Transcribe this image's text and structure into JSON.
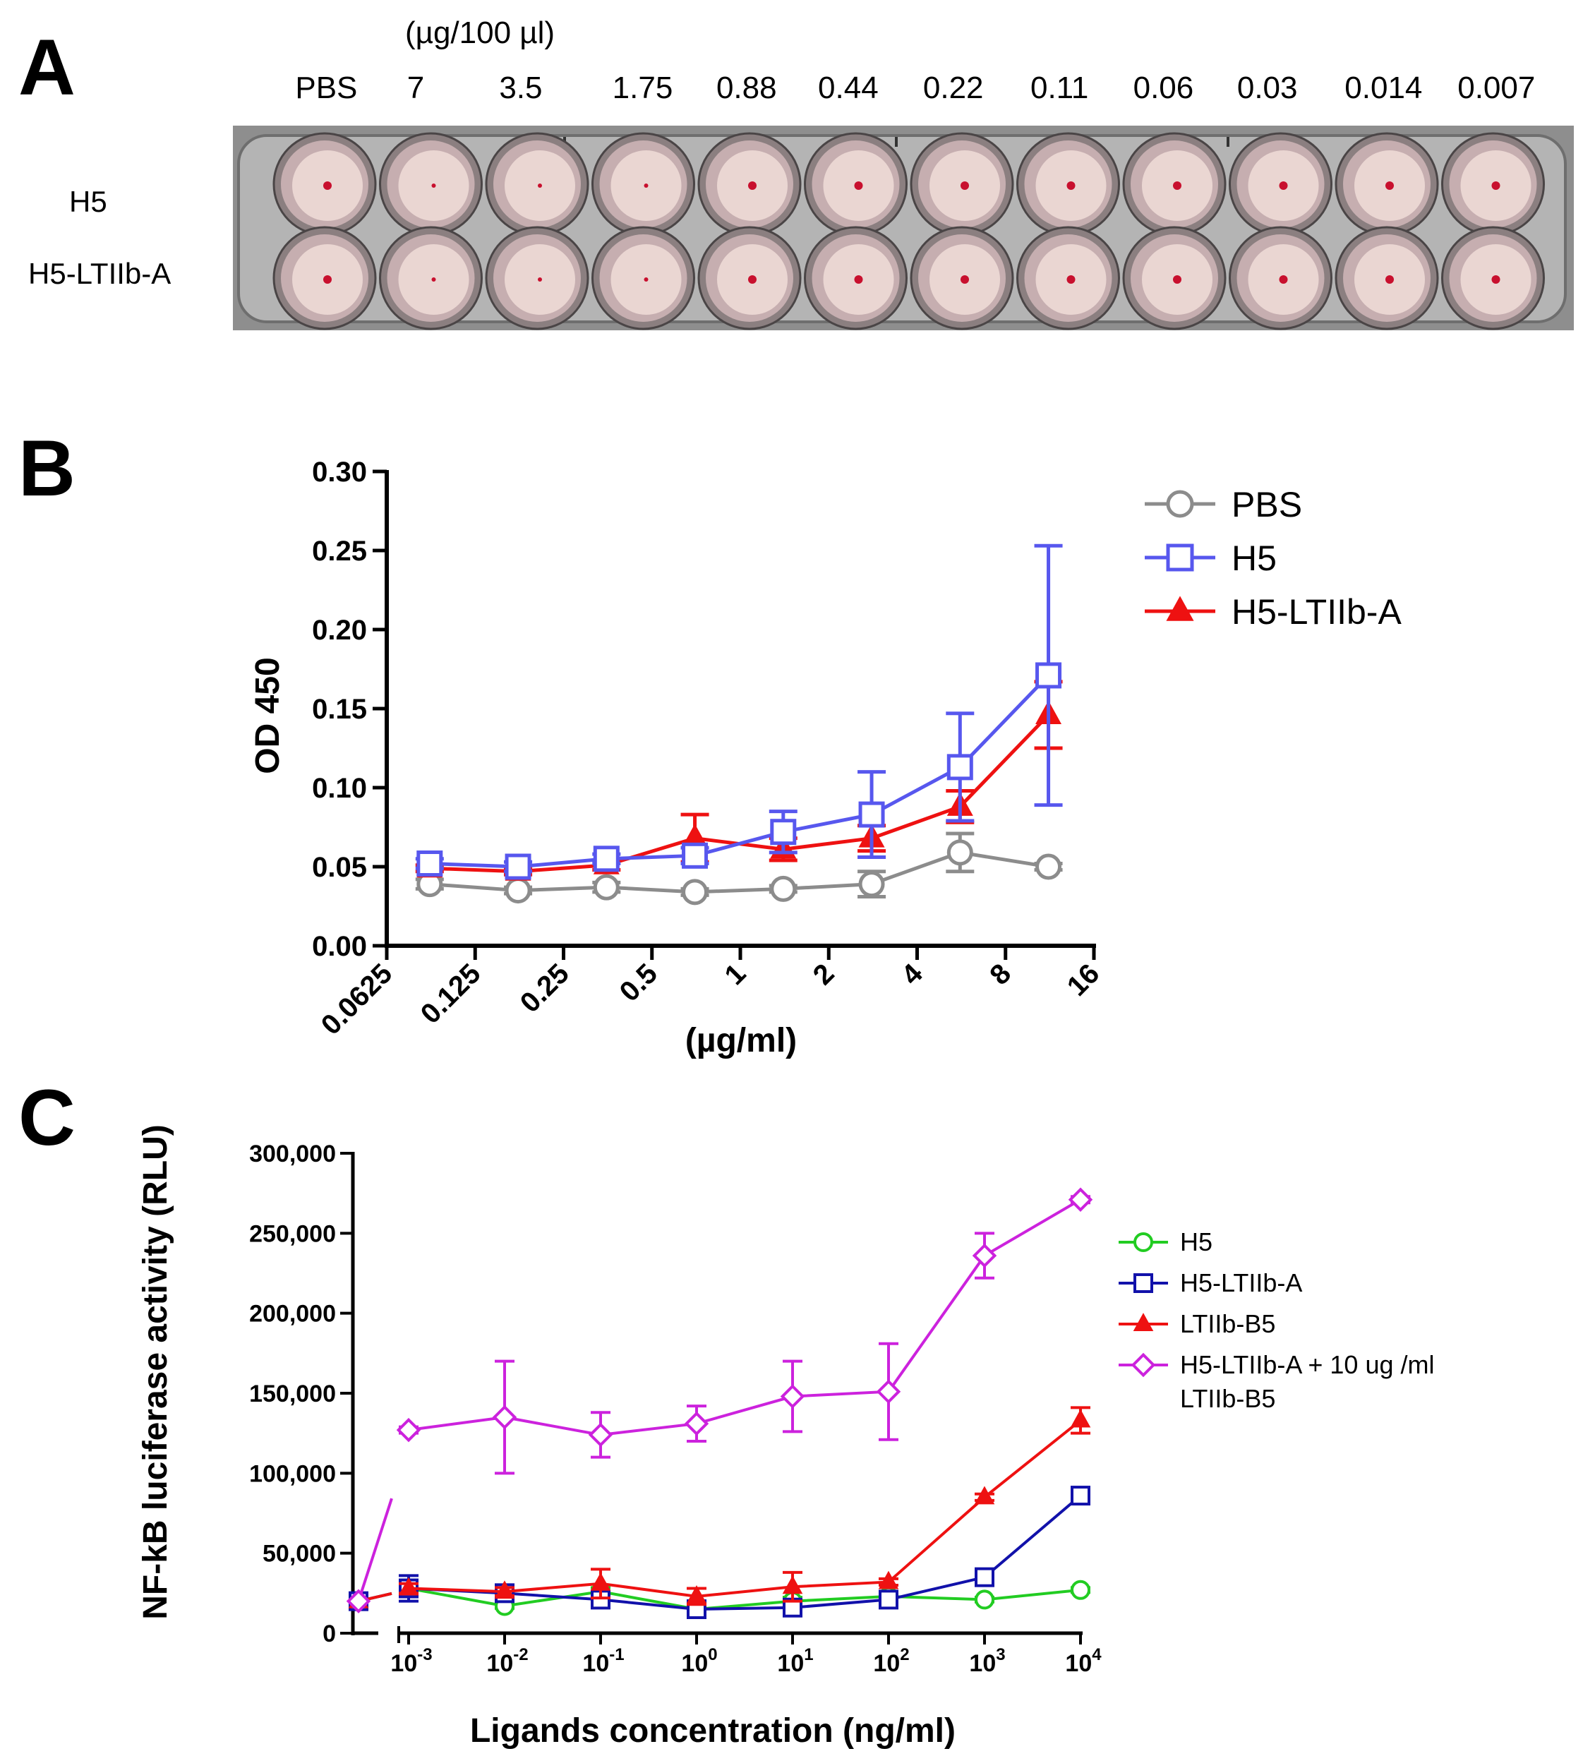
{
  "panel_a": {
    "letter": "A",
    "units": "(µg/100 µl)",
    "columns": [
      "PBS",
      "7",
      "3.5",
      "1.75",
      "0.88",
      "0.44",
      "0.22",
      "0.11",
      "0.06",
      "0.03",
      "0.014",
      "0.007"
    ],
    "rows": [
      "H5",
      "H5-LTIIb-A"
    ],
    "colors": {
      "plate": "#8e8e8e",
      "well": "#ead6d2",
      "rbc_dot": "#c8102e"
    }
  },
  "panel_b": {
    "letter": "B",
    "chart_data": {
      "type": "line",
      "xlabel": "(µg/ml)",
      "ylabel": "OD 450",
      "x_scale": "log2",
      "xlim": [
        0.0625,
        16
      ],
      "x_ticks": [
        "0.0625",
        "0.125",
        "0.25",
        "0.5",
        "1",
        "2",
        "4",
        "8",
        "16"
      ],
      "ylim": [
        0,
        0.3
      ],
      "y_ticks": [
        "0.00",
        "0.05",
        "0.10",
        "0.15",
        "0.20",
        "0.25",
        "0.30"
      ],
      "x": [
        0.0875,
        0.175,
        0.35,
        0.7,
        1.4,
        2.8,
        5.6,
        11.2
      ],
      "series": [
        {
          "name": "PBS",
          "color": "#8c8c8c",
          "marker": "circle",
          "values": [
            0.039,
            0.035,
            0.037,
            0.034,
            0.036,
            0.039,
            0.059,
            0.05
          ],
          "errors": [
            0.003,
            0.002,
            0.003,
            0.002,
            0.002,
            0.008,
            0.012,
            0.002
          ]
        },
        {
          "name": "H5",
          "color": "#5757ee",
          "marker": "square",
          "values": [
            0.052,
            0.05,
            0.055,
            0.057,
            0.072,
            0.083,
            0.113,
            0.171
          ],
          "errors": [
            0.003,
            0.003,
            0.003,
            0.005,
            0.013,
            0.027,
            0.034,
            0.082
          ]
        },
        {
          "name": "H5-LTIIb-A",
          "color": "#ee1111",
          "marker": "triangle",
          "values": [
            0.049,
            0.047,
            0.051,
            0.068,
            0.061,
            0.068,
            0.088,
            0.146
          ],
          "errors": [
            0.002,
            0.002,
            0.003,
            0.015,
            0.007,
            0.008,
            0.01,
            0.021
          ]
        }
      ]
    }
  },
  "panel_c": {
    "letter": "C",
    "chart_data": {
      "type": "line",
      "xlabel": "Ligands concentration (ng/ml)",
      "ylabel": "NF-kB luciferase activity (RLU)",
      "x_scale": "log10 with broken axis (zero point)",
      "x_ticks": [
        {
          "base": "10",
          "exp": "-3"
        },
        {
          "base": "10",
          "exp": "-2"
        },
        {
          "base": "10",
          "exp": "-1"
        },
        {
          "base": "10",
          "exp": "0"
        },
        {
          "base": "10",
          "exp": "1"
        },
        {
          "base": "10",
          "exp": "2"
        },
        {
          "base": "10",
          "exp": "3"
        },
        {
          "base": "10",
          "exp": "4"
        }
      ],
      "x_log": [
        -3,
        -2,
        -1,
        0,
        1,
        2,
        3,
        4
      ],
      "zero_value": 0,
      "ylim": [
        0,
        300000
      ],
      "y_ticks": [
        "0",
        "50,000",
        "100,000",
        "150,000",
        "200,000",
        "250,000",
        "300,000"
      ],
      "series": [
        {
          "name": "H5",
          "color": "#22cc22",
          "marker": "circle",
          "zero": 20000,
          "values": [
            28000,
            17000,
            26000,
            15000,
            20000,
            23000,
            21000,
            27000
          ],
          "errors": [
            3000,
            1500,
            2500,
            1500,
            2500,
            1500,
            1500,
            1500
          ]
        },
        {
          "name": "H5-LTIIb-A",
          "color": "#1111aa",
          "marker": "square",
          "zero": 20000,
          "values": [
            28000,
            25000,
            21000,
            15000,
            16000,
            21000,
            35000,
            86000
          ],
          "errors": [
            8000,
            1500,
            1500,
            1500,
            2500,
            1500,
            1500,
            2000
          ]
        },
        {
          "name": "LTIIb-B5",
          "color": "#ee1111",
          "marker": "triangle",
          "zero": 20000,
          "values": [
            28000,
            26000,
            31000,
            23000,
            29000,
            32000,
            85000,
            133000
          ],
          "errors": [
            3000,
            2500,
            9000,
            5000,
            9000,
            2000,
            2000,
            8000
          ]
        },
        {
          "name": "H5-LTIIb-A + 10 ug /ml LTIIb-B5",
          "legend_lines": [
            "H5-LTIIb-A + 10 ug /ml",
            "LTIIb-B5"
          ],
          "color": "#cc22dd",
          "marker": "diamond",
          "zero": 20000,
          "values": [
            127000,
            135000,
            124000,
            131000,
            148000,
            151000,
            236000,
            271000
          ],
          "errors": [
            2000,
            35000,
            14000,
            11000,
            22000,
            30000,
            14000,
            2000
          ]
        }
      ]
    }
  }
}
